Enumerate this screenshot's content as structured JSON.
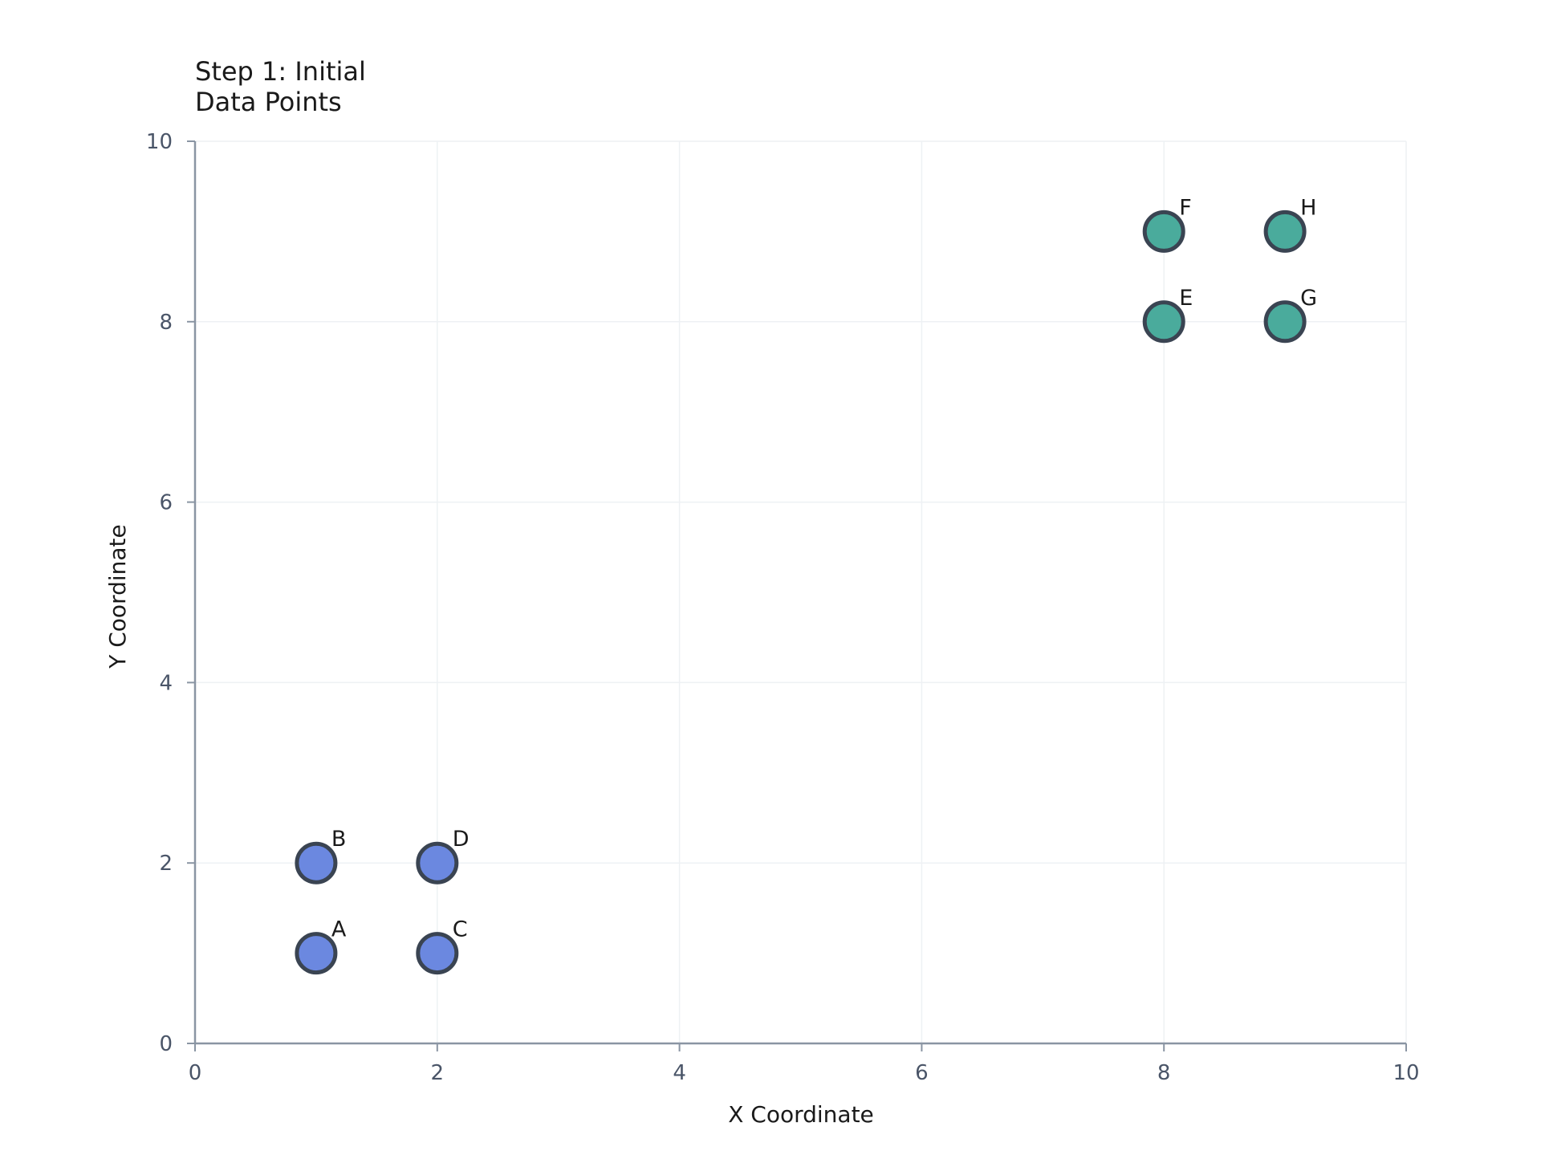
{
  "chart_data": {
    "type": "scatter",
    "title_lines": [
      "Step 1: Initial",
      "Data Points"
    ],
    "xlabel": "X Coordinate",
    "ylabel": "Y Coordinate",
    "xlim": [
      0,
      10
    ],
    "ylim": [
      0,
      10
    ],
    "xticks": [
      0,
      2,
      4,
      6,
      8,
      10
    ],
    "yticks": [
      0,
      2,
      4,
      6,
      8,
      10
    ],
    "grid": true,
    "series": [
      {
        "color": "#6b88e0",
        "points": [
          {
            "label": "A",
            "x": 1,
            "y": 1
          },
          {
            "label": "B",
            "x": 1,
            "y": 2
          },
          {
            "label": "C",
            "x": 2,
            "y": 1
          },
          {
            "label": "D",
            "x": 2,
            "y": 2
          }
        ]
      },
      {
        "color": "#4aab9c",
        "points": [
          {
            "label": "E",
            "x": 8,
            "y": 8
          },
          {
            "label": "F",
            "x": 8,
            "y": 9
          },
          {
            "label": "G",
            "x": 9,
            "y": 8
          },
          {
            "label": "H",
            "x": 9,
            "y": 9
          }
        ]
      }
    ],
    "marker_edge_color": "#3a4452"
  }
}
